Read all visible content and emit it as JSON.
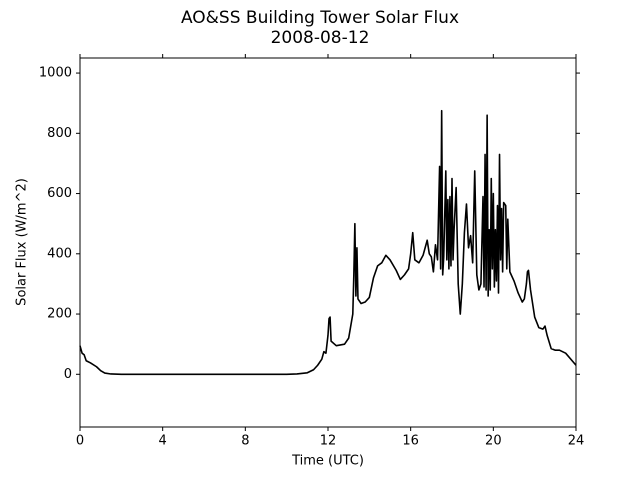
{
  "chart_data": {
    "type": "line",
    "title": "AO&SS Building Tower Solar Flux",
    "subtitle": "2008-08-12",
    "x_label": "Time (UTC)",
    "y_label": "Solar Flux (W/m^2)",
    "color": "#000000",
    "x": [
      0,
      0.1,
      0.2,
      0.3,
      0.5,
      0.8,
      1.0,
      1.2,
      1.5,
      2,
      4,
      6,
      8,
      10,
      10.5,
      11,
      11.3,
      11.5,
      11.7,
      11.8,
      11.9,
      12.0,
      12.05,
      12.1,
      12.15,
      12.4,
      12.8,
      13.0,
      13.2,
      13.25,
      13.3,
      13.35,
      13.4,
      13.45,
      13.6,
      13.8,
      14.0,
      14.2,
      14.4,
      14.6,
      14.8,
      15.0,
      15.3,
      15.5,
      15.7,
      15.9,
      16.0,
      16.1,
      16.2,
      16.4,
      16.6,
      16.8,
      16.9,
      17.0,
      17.1,
      17.2,
      17.3,
      17.4,
      17.45,
      17.5,
      17.55,
      17.6,
      17.7,
      17.75,
      17.8,
      17.85,
      17.9,
      17.95,
      18.0,
      18.05,
      18.1,
      18.2,
      18.3,
      18.4,
      18.5,
      18.6,
      18.7,
      18.8,
      18.9,
      19.0,
      19.1,
      19.2,
      19.3,
      19.4,
      19.5,
      19.55,
      19.6,
      19.65,
      19.7,
      19.75,
      19.8,
      19.85,
      19.9,
      19.95,
      20.0,
      20.05,
      20.1,
      20.15,
      20.2,
      20.25,
      20.3,
      20.35,
      20.4,
      20.45,
      20.5,
      20.6,
      20.65,
      20.7,
      20.8,
      21.0,
      21.2,
      21.4,
      21.5,
      21.6,
      21.65,
      21.7,
      21.8,
      22.0,
      22.2,
      22.4,
      22.5,
      22.6,
      22.8,
      23.0,
      23.2,
      23.5,
      24
    ],
    "values": [
      95,
      70,
      65,
      45,
      38,
      25,
      12,
      4,
      1,
      0,
      0,
      0,
      0,
      0,
      1,
      5,
      15,
      30,
      50,
      75,
      70,
      130,
      185,
      190,
      110,
      95,
      100,
      120,
      200,
      330,
      500,
      260,
      420,
      250,
      235,
      240,
      255,
      320,
      360,
      370,
      395,
      380,
      345,
      315,
      330,
      350,
      400,
      470,
      380,
      370,
      395,
      445,
      400,
      390,
      340,
      430,
      380,
      690,
      350,
      875,
      330,
      390,
      675,
      380,
      580,
      350,
      590,
      360,
      650,
      380,
      480,
      620,
      300,
      200,
      300,
      470,
      565,
      420,
      460,
      370,
      675,
      330,
      280,
      300,
      590,
      290,
      730,
      280,
      860,
      260,
      480,
      280,
      650,
      350,
      600,
      290,
      480,
      310,
      560,
      270,
      730,
      380,
      550,
      340,
      570,
      560,
      350,
      515,
      340,
      310,
      270,
      240,
      250,
      300,
      340,
      345,
      280,
      190,
      155,
      150,
      160,
      130,
      85,
      80,
      80,
      70,
      30
    ],
    "xlim": [
      0,
      24
    ],
    "xticks": [
      0,
      4,
      8,
      12,
      16,
      20,
      24
    ],
    "ylim": [
      -175,
      1050
    ],
    "yticks": [
      0,
      200,
      400,
      600,
      800,
      1000
    ]
  }
}
